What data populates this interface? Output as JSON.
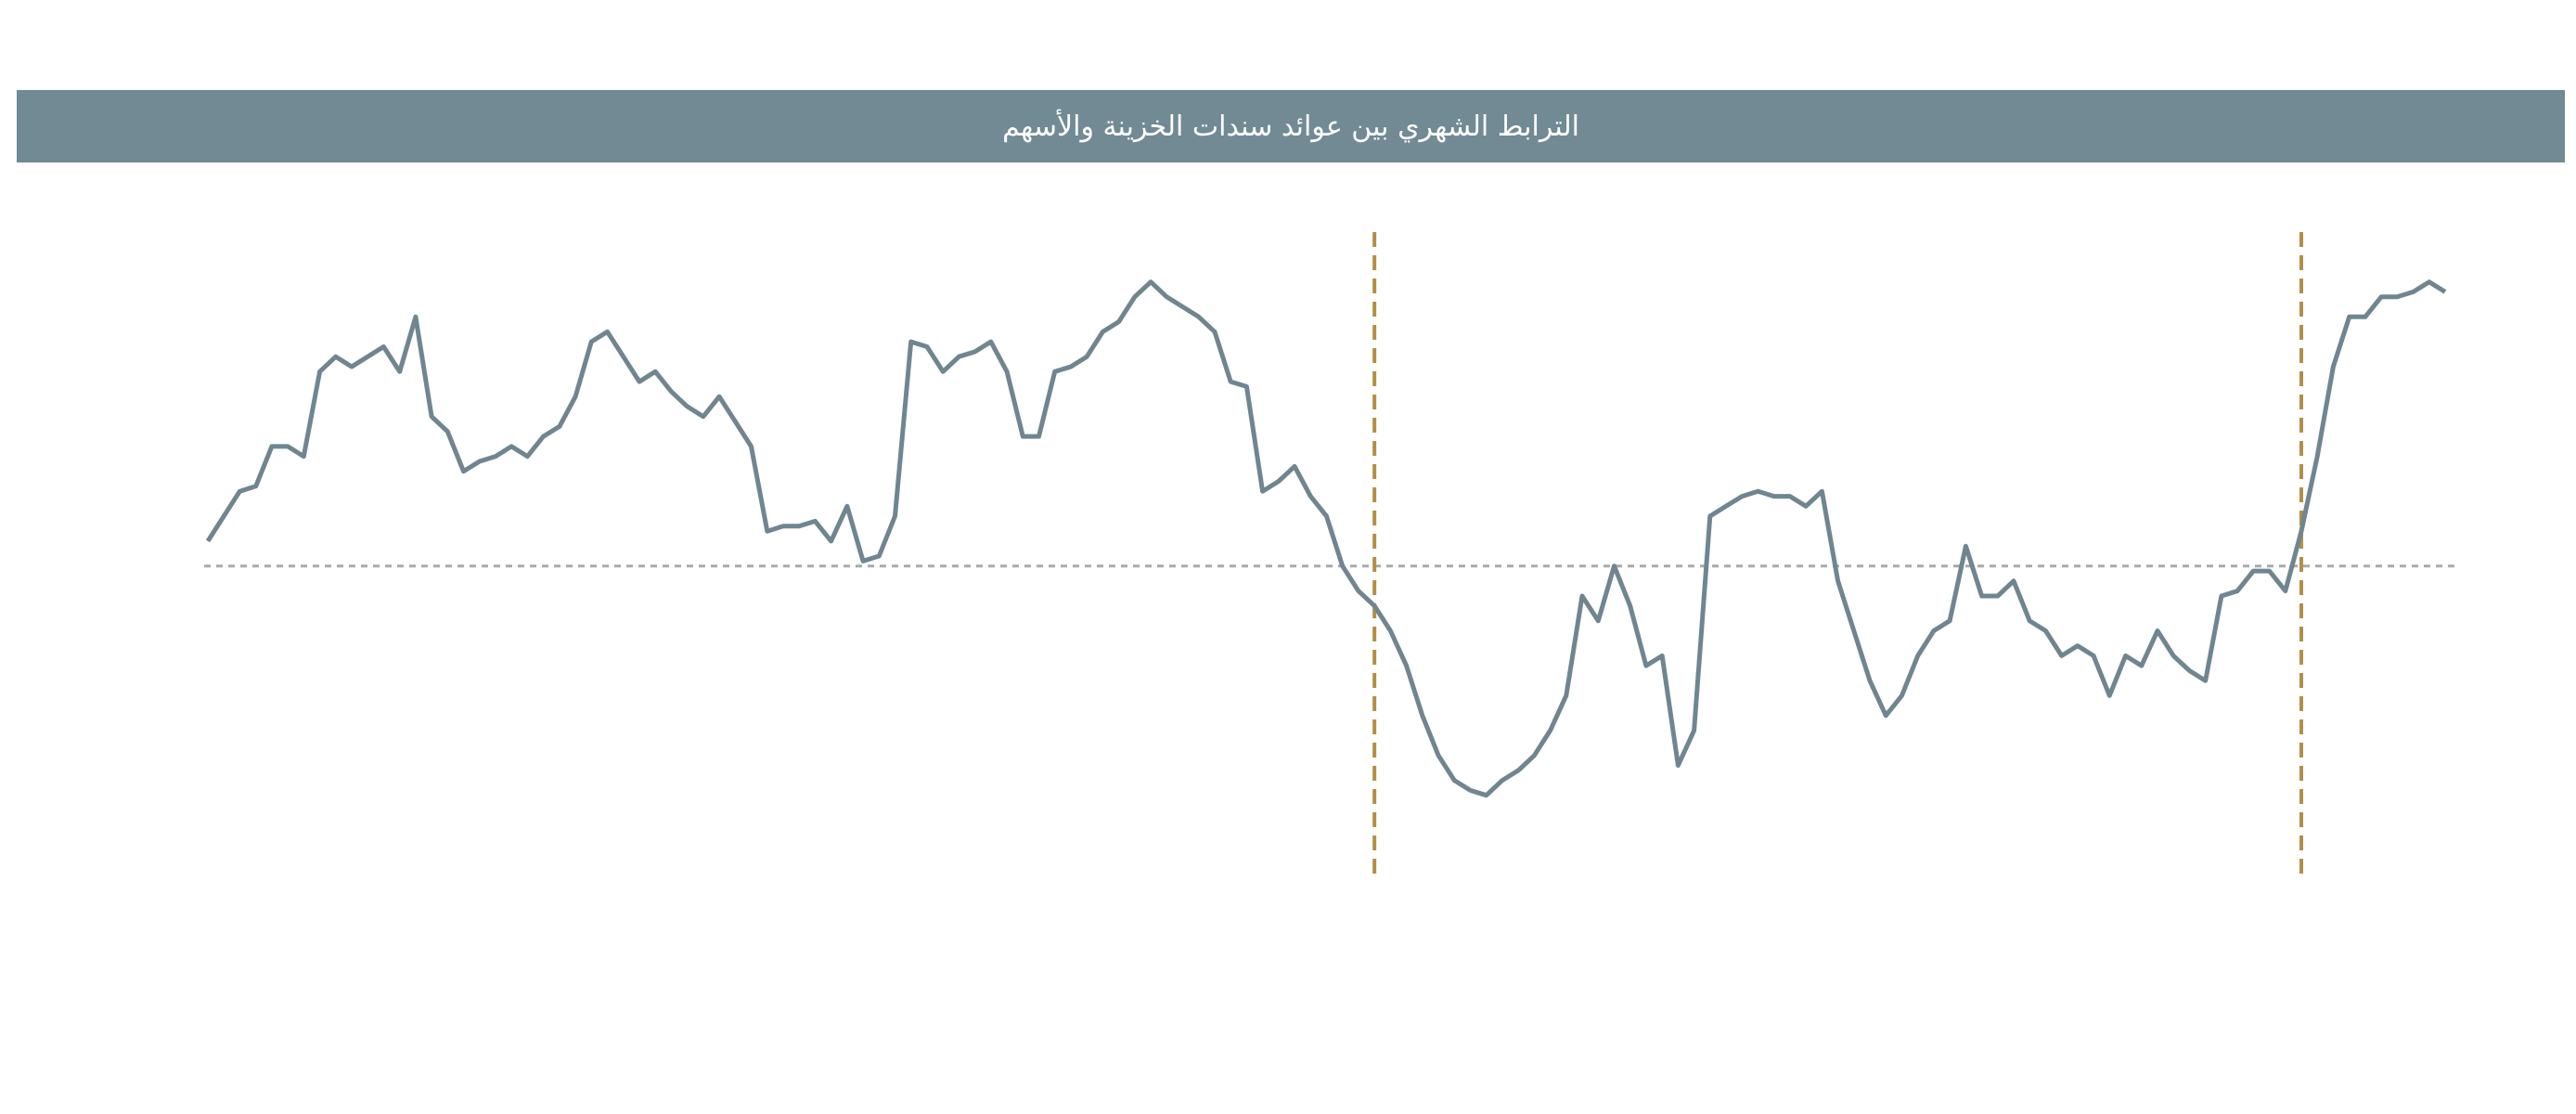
{
  "chart_data": {
    "type": "line",
    "title": "الترابط الشهري بين عوائد سندات الخزينة والأسهم",
    "series": [
      {
        "color": "#6f8691",
        "values": [
          0.05,
          0.1,
          0.15,
          0.16,
          0.24,
          0.24,
          0.22,
          0.39,
          0.42,
          0.4,
          0.42,
          0.44,
          0.39,
          0.5,
          0.3,
          0.27,
          0.19,
          0.21,
          0.22,
          0.24,
          0.22,
          0.26,
          0.28,
          0.34,
          0.45,
          0.47,
          0.42,
          0.37,
          0.39,
          0.35,
          0.32,
          0.3,
          0.34,
          0.29,
          0.24,
          0.07,
          0.08,
          0.08,
          0.09,
          0.05,
          0.12,
          0.01,
          0.02,
          0.1,
          0.45,
          0.44,
          0.39,
          0.42,
          0.43,
          0.45,
          0.39,
          0.26,
          0.26,
          0.39,
          0.4,
          0.42,
          0.47,
          0.49,
          0.54,
          0.57,
          0.54,
          0.52,
          0.5,
          0.47,
          0.37,
          0.36,
          0.15,
          0.17,
          0.2,
          0.14,
          0.1,
          0.0,
          -0.05,
          -0.08,
          -0.13,
          -0.2,
          -0.3,
          -0.38,
          -0.43,
          -0.45,
          -0.46,
          -0.43,
          -0.41,
          -0.38,
          -0.33,
          -0.26,
          -0.06,
          -0.11,
          0.0,
          -0.08,
          -0.2,
          -0.18,
          -0.4,
          -0.33,
          0.1,
          0.12,
          0.14,
          0.15,
          0.14,
          0.14,
          0.12,
          0.15,
          -0.03,
          -0.13,
          -0.23,
          -0.3,
          -0.26,
          -0.18,
          -0.13,
          -0.11,
          0.04,
          -0.06,
          -0.06,
          -0.03,
          -0.11,
          -0.13,
          -0.18,
          -0.16,
          -0.18,
          -0.26,
          -0.18,
          -0.2,
          -0.13,
          -0.18,
          -0.21,
          -0.23,
          -0.06,
          -0.05,
          -0.01,
          -0.01,
          -0.05,
          0.07,
          0.22,
          0.4,
          0.5,
          0.5,
          0.54,
          0.54,
          0.55,
          0.57,
          0.55
        ]
      }
    ],
    "ylim": [
      -0.63,
      0.67
    ],
    "reference_line": 0,
    "reference_color": "#aaaaaa",
    "vlines": [
      73,
      131
    ],
    "vline_color": "#b58e45",
    "title_background": "#718a94"
  }
}
